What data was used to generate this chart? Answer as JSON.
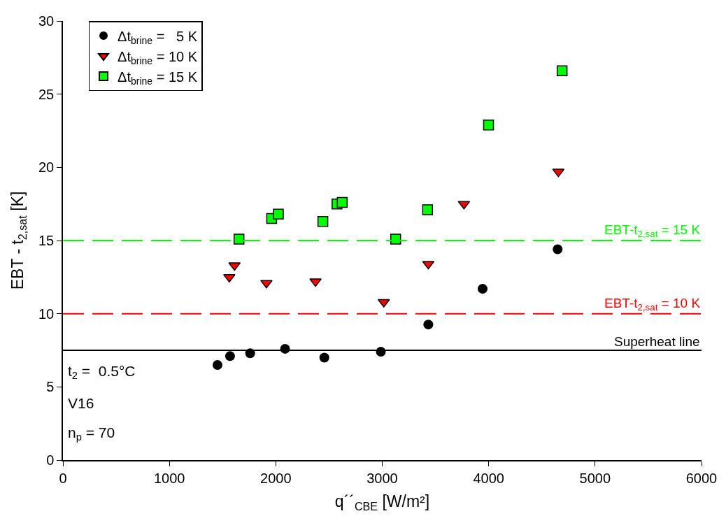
{
  "chart_data": {
    "type": "scatter",
    "xlabel": "q´´$_{CBE}$ [W/m²]",
    "ylabel": "EBT - t$_{2,sat}$ [K]",
    "xlim": [
      0,
      6000
    ],
    "xticks": [
      0,
      1000,
      2000,
      3000,
      4000,
      5000,
      6000
    ],
    "ylim": [
      0,
      30
    ],
    "yticks": [
      0,
      5,
      10,
      15,
      20,
      25,
      30
    ],
    "grid": false,
    "legend": "top left",
    "series": [
      {
        "name": "Δt$_{brine}$ =   5 K",
        "color": "#000000",
        "marker": "circle",
        "x": [
          1452,
          1570,
          1759,
          2087,
          2456,
          2987,
          3433,
          3943,
          4648
        ],
        "values": [
          6.5,
          7.1,
          7.3,
          7.6,
          7.0,
          7.4,
          9.26,
          11.7,
          14.4
        ]
      },
      {
        "name": "Δt$_{brine}$ = 10 K",
        "color": "#ff0000",
        "marker": "triangle",
        "x": [
          1563,
          1612,
          1912,
          2373,
          3015,
          3433,
          3768,
          4655
        ],
        "values": [
          12.5,
          13.3,
          12.1,
          12.2,
          10.8,
          13.4,
          17.5,
          19.7
        ]
      },
      {
        "name": "Δt$_{brine}$ = 15 K",
        "color": "#00ff00",
        "marker": "square",
        "x": [
          1654,
          1961,
          2024,
          2442,
          2575,
          2624,
          3126,
          3426,
          3999,
          4690
        ],
        "values": [
          15.1,
          16.5,
          16.8,
          16.3,
          17.5,
          17.6,
          15.1,
          17.1,
          22.9,
          26.6
        ]
      }
    ],
    "ref_lines": [
      {
        "axis": "y",
        "value": 15,
        "label": "EBT-t$_{2,sat}$ = 15 K",
        "color": "#00ff00",
        "line_style": "dashed"
      },
      {
        "axis": "y",
        "value": 10,
        "label": "EBT-t$_{2,sat}$ = 10 K",
        "color": "#ff0000",
        "line_style": "dashed"
      },
      {
        "axis": "y",
        "value": 7.5,
        "label": "Superheat line",
        "color": "#000000",
        "line_style": "solid"
      }
    ],
    "annotations": [
      "t$_{2}$ =  0.5°C",
      "V16",
      "n$_{p}$ = 70"
    ]
  }
}
